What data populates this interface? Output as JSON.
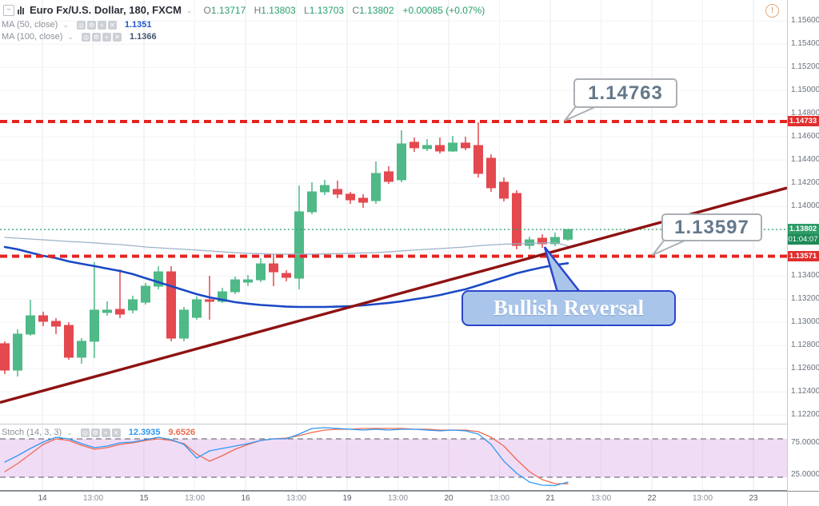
{
  "header": {
    "symbol_title": "Euro Fx/U.S. Dollar, 180, FXCM",
    "ohlc": {
      "o_label": "O",
      "o_value": "1.13717",
      "h_label": "H",
      "h_value": "1.13803",
      "l_label": "L",
      "l_value": "1.13703",
      "c_label": "C",
      "c_value": "1.13802",
      "change": "+0.00085 (+0.07%)"
    },
    "indicators": [
      {
        "label": "MA (50, close)",
        "value": "1.1351",
        "value_color": "#2356ca"
      },
      {
        "label": "MA (100, close)",
        "value": "1.1366",
        "value_color": "#44546e"
      }
    ],
    "icons": {
      "collapse": "−",
      "caret": "⌄",
      "legend_buttons": [
        "◎",
        "⚙",
        "+",
        "✕"
      ]
    },
    "warning_icon": "!"
  },
  "stoch_legend": {
    "label": "Stoch (14, 3, 3)",
    "k_value": "12.3935",
    "d_value": "9.6526"
  },
  "annotations": {
    "resistance_callout": "1.14763",
    "support_callout": "1.13597",
    "bullish_reversal": "Bullish Reversal"
  },
  "axis_labels": {
    "resistance": "1.14733",
    "current_price": "1.13802",
    "countdown": "01:04:07",
    "support": "1.13571",
    "price_ticks": [
      "1.15600",
      "1.15400",
      "1.15200",
      "1.15000",
      "1.14800",
      "1.14600",
      "1.14400",
      "1.14200",
      "1.14000",
      "1.13400",
      "1.13200",
      "1.13000",
      "1.12800",
      "1.12600",
      "1.12400",
      "1.12200"
    ],
    "stoch_ticks": [
      "75.0000",
      "25.0000"
    ]
  },
  "colors": {
    "up_candle": "#4fb987",
    "down_candle": "#e3494f",
    "ma50": "#1a49c4",
    "ma100": "#9bb3c9",
    "level_dashed": "#e42420",
    "current_price_line": "#33a06c",
    "trendline": "#8e1212",
    "stoch_k": "#2f98f5",
    "stoch_d": "#ee6a4f",
    "stoch_band": "rgba(204,128,222,0.28)",
    "balloon_bg": "#a9c6ea",
    "balloon_border": "#2b46cc",
    "axis_red_label": "#e12e2e",
    "axis_green_label": "#2f9b67"
  },
  "chart_data": {
    "type": "candlestick",
    "title": "Euro Fx/U.S. Dollar, 180, FXCM",
    "time_labels": [
      "14",
      "13:00",
      "15",
      "13:00",
      "16",
      "13:00",
      "19",
      "13:00",
      "20",
      "13:00",
      "21",
      "13:00",
      "22",
      "13:00",
      "23"
    ],
    "price_axis": {
      "visible_min": 1.1214,
      "visible_max": 1.15781,
      "grid_step": 0.002
    },
    "candles": [
      [
        1.12816,
        1.12837,
        1.12554,
        1.12588
      ],
      [
        1.12588,
        1.1294,
        1.12533,
        1.12899
      ],
      [
        1.12899,
        1.13195,
        1.12885,
        1.13057
      ],
      [
        1.13057,
        1.13092,
        1.12967,
        1.13009
      ],
      [
        1.13009,
        1.13037,
        1.12899,
        1.12967
      ],
      [
        1.12974,
        1.13002,
        1.12678,
        1.12699
      ],
      [
        1.12699,
        1.12864,
        1.12643,
        1.12837
      ],
      [
        1.12837,
        1.1352,
        1.12692,
        1.13106
      ],
      [
        1.13085,
        1.13181,
        1.13057,
        1.13106
      ],
      [
        1.13112,
        1.13457,
        1.13037,
        1.13071
      ],
      [
        1.13106,
        1.1323,
        1.13078,
        1.13195
      ],
      [
        1.13174,
        1.1334,
        1.13154,
        1.13312
      ],
      [
        1.13312,
        1.13484,
        1.13285,
        1.13436
      ],
      [
        1.13436,
        1.13484,
        1.12837,
        1.12864
      ],
      [
        1.12864,
        1.13133,
        1.12837,
        1.13106
      ],
      [
        1.13043,
        1.13223,
        1.13023,
        1.13195
      ],
      [
        1.13195,
        1.13402,
        1.13023,
        1.13181
      ],
      [
        1.13181,
        1.13298,
        1.13167,
        1.13264
      ],
      [
        1.13264,
        1.13395,
        1.13243,
        1.13367
      ],
      [
        1.13347,
        1.13409,
        1.13312,
        1.13367
      ],
      [
        1.13367,
        1.13553,
        1.13347,
        1.13505
      ],
      [
        1.13505,
        1.13588,
        1.13312,
        1.13436
      ],
      [
        1.13422,
        1.1345,
        1.13354,
        1.13388
      ],
      [
        1.13381,
        1.14181,
        1.13285,
        1.13954
      ],
      [
        1.13954,
        1.14209,
        1.13933,
        1.14126
      ],
      [
        1.14126,
        1.1423,
        1.14099,
        1.14181
      ],
      [
        1.14147,
        1.14223,
        1.14071,
        1.14106
      ],
      [
        1.14106,
        1.14126,
        1.14023,
        1.14057
      ],
      [
        1.14071,
        1.14106,
        1.13988,
        1.14036
      ],
      [
        1.1405,
        1.14388,
        1.14023,
        1.14285
      ],
      [
        1.14299,
        1.14347,
        1.14195,
        1.14216
      ],
      [
        1.1423,
        1.14657,
        1.14209,
        1.1454
      ],
      [
        1.14554,
        1.14595,
        1.14471,
        1.14506
      ],
      [
        1.14499,
        1.14581,
        1.14478,
        1.14526
      ],
      [
        1.14526,
        1.14595,
        1.14457,
        1.14478
      ],
      [
        1.14478,
        1.14609,
        1.14471,
        1.14547
      ],
      [
        1.14547,
        1.14602,
        1.14485,
        1.14506
      ],
      [
        1.14526,
        1.14726,
        1.1425,
        1.14285
      ],
      [
        1.14416,
        1.1445,
        1.14126,
        1.14161
      ],
      [
        1.14209,
        1.1425,
        1.14043,
        1.14071
      ],
      [
        1.14112,
        1.1414,
        1.1363,
        1.13664
      ],
      [
        1.13664,
        1.1374,
        1.1363,
        1.13712
      ],
      [
        1.13726,
        1.1376,
        1.13643,
        1.13678
      ],
      [
        1.13678,
        1.13774,
        1.13657,
        1.13733
      ],
      [
        1.13717,
        1.13803,
        1.13703,
        1.13802
      ]
    ],
    "series": [
      {
        "name": "MA (50, close)",
        "values": [
          1.1365,
          1.1363,
          1.13602,
          1.13574,
          1.13554,
          1.13526,
          1.13505,
          1.13485,
          1.13464,
          1.13443,
          1.13416,
          1.13381,
          1.13347,
          1.13312,
          1.13278,
          1.13243,
          1.13216,
          1.13195,
          1.13174,
          1.13161,
          1.1315,
          1.13143,
          1.13136,
          1.13133,
          1.13133,
          1.13133,
          1.13136,
          1.1314,
          1.13147,
          1.13157,
          1.13168,
          1.13181,
          1.13199,
          1.13216,
          1.13236,
          1.13261,
          1.13285,
          1.13319,
          1.13354,
          1.13388,
          1.13423,
          1.1345,
          1.13474,
          1.13495,
          1.1351
        ]
      },
      {
        "name": "MA (100, close)",
        "values": [
          1.13733,
          1.13726,
          1.13719,
          1.13712,
          1.13705,
          1.13698,
          1.13692,
          1.13685,
          1.13678,
          1.13671,
          1.13661,
          1.1365,
          1.13643,
          1.13636,
          1.1363,
          1.13623,
          1.13616,
          1.13609,
          1.13602,
          1.13595,
          1.13592,
          1.13588,
          1.13588,
          1.13588,
          1.13588,
          1.1359,
          1.13592,
          1.13595,
          1.13599,
          1.13602,
          1.13609,
          1.13616,
          1.13623,
          1.1363,
          1.13636,
          1.13643,
          1.1365,
          1.13661,
          1.13668,
          1.13674,
          1.13678,
          1.13681,
          1.13685,
          1.13688,
          1.1366
        ]
      }
    ],
    "stochastic": {
      "k": [
        43.8,
        53.8,
        65,
        75,
        82.5,
        80,
        72.5,
        66.3,
        68.8,
        73.8,
        75,
        78.8,
        82.5,
        78.8,
        71.3,
        50,
        61.3,
        65,
        68.8,
        72.5,
        77.5,
        80,
        80,
        87.5,
        96.3,
        97.5,
        96.3,
        95,
        93.8,
        95,
        93.8,
        95,
        95,
        93.8,
        92.5,
        93.8,
        92.5,
        87.5,
        71.3,
        45,
        26.3,
        12.5,
        7.5,
        7,
        12.4
      ],
      "d": [
        28.8,
        41.3,
        56.3,
        71.3,
        80,
        77.5,
        70,
        63.8,
        66.3,
        71.3,
        73.8,
        77.5,
        80,
        77.5,
        72.5,
        56.3,
        45,
        53.8,
        63.8,
        71.3,
        77.5,
        80,
        81.3,
        85,
        90,
        93.8,
        95,
        95,
        96.3,
        96.3,
        96.3,
        96.3,
        95,
        95,
        93.8,
        93.8,
        93.8,
        91.3,
        82.5,
        68.8,
        47.5,
        28.8,
        16.3,
        10,
        9.7
      ],
      "band": [
        20,
        80
      ],
      "k_last": 12.3935,
      "d_last": 9.6526
    },
    "levels": {
      "resistance": 1.14733,
      "support": 1.13571,
      "current": 1.13802
    },
    "trendline": {
      "price_start": 1.12309,
      "price_end": 1.1416
    }
  }
}
